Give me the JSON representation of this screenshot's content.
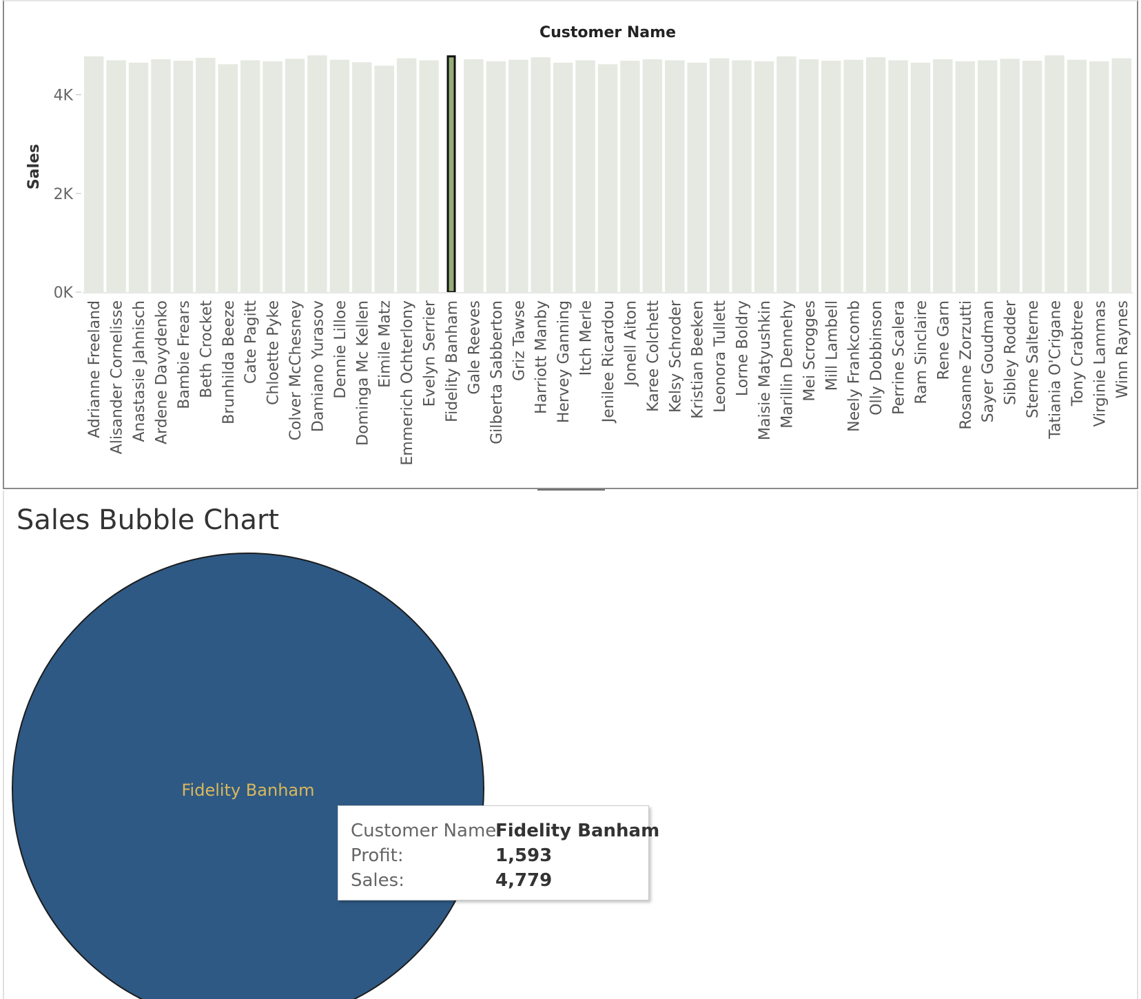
{
  "bar_chart_panel": {
    "selected_customer": "Fidelity Banham"
  },
  "bubble_chart_panel": {
    "title": "Sales Bubble Chart",
    "bubble_label": "Fidelity Banham",
    "tooltip": {
      "name_key": "Customer Name:",
      "name_value": "Fidelity Banham",
      "profit_key": "Profit:",
      "profit_value": "1,593",
      "sales_key": "Sales:",
      "sales_value": "4,779"
    }
  },
  "colors": {
    "bars": "#e6e9e1",
    "selected_bar": "#95ad77",
    "bubble": "#2e5984",
    "bubble_label": "#d9b85c"
  },
  "chart_data": [
    {
      "type": "bar",
      "title": "Customer Name",
      "xlabel": "",
      "ylabel": "Sales",
      "ylim": [
        0,
        5000
      ],
      "yticks": [
        "0K",
        "2K",
        "4K"
      ],
      "ytick_values": [
        0,
        2000,
        4000
      ],
      "categories": [
        "Adrianne Freeland",
        "Alisander Cornelisse",
        "Anastasie Jahnisch",
        "Ardene Davydenko",
        "Bambie Frears",
        "Beth Crocket",
        "Brunhilda Beeze",
        "Cate Pagitt",
        "Chloette Pyke",
        "Colver McChesney",
        "Damiano Yurasov",
        "Dennie Lilloe",
        "Dominga Mc Kellen",
        "Eimile Matz",
        "Emmerich Ochterlony",
        "Evelyn Serrier",
        "Fidelity Banham",
        "Gale Reeves",
        "Gilberta Sabberton",
        "Griz Tawse",
        "Harriott Manby",
        "Hervey Ganning",
        "Itch Merle",
        "Jenilee Ricardou",
        "Jonell Aiton",
        "Karee Colchett",
        "Kelsy Schroder",
        "Kristian Beeken",
        "Leonora Tullett",
        "Lorne Boldry",
        "Maisie Matyushkin",
        "Marillin Dennehy",
        "Mei Scrogges",
        "Mill Lambell",
        "Neely Frankcomb",
        "Olly Dobbinson",
        "Perrine Scalera",
        "Ram Sinclaire",
        "Rene Garn",
        "Rosanne Zorzutti",
        "Sayer Goudman",
        "Sibley Rodder",
        "Sterne Salterne",
        "Tatiania O'Crigane",
        "Tony Crabtree",
        "Virginie Lammas",
        "Winn Raynes"
      ],
      "values_note_range": [
        4500,
        5000
      ],
      "highlighted": "Fidelity Banham",
      "highlighted_value": 4779,
      "series": [
        {
          "values": [
            4780,
            4700,
            4650,
            4720,
            4690,
            4750,
            4620,
            4700,
            4680,
            4730,
            4800,
            4710,
            4660,
            4590,
            4740,
            4700,
            4779,
            4720,
            4680,
            4710,
            4760,
            4650,
            4700,
            4620,
            4690,
            4720,
            4700,
            4650,
            4740,
            4700,
            4680,
            4780,
            4720,
            4690,
            4710,
            4760,
            4700,
            4650,
            4720,
            4680,
            4700,
            4730,
            4690,
            4800,
            4710,
            4680,
            4740
          ]
        }
      ]
    },
    {
      "type": "scatter",
      "title": "Sales Bubble Chart",
      "points": [
        {
          "label": "Fidelity Banham",
          "profit": 1593,
          "sales": 4779
        }
      ]
    }
  ]
}
